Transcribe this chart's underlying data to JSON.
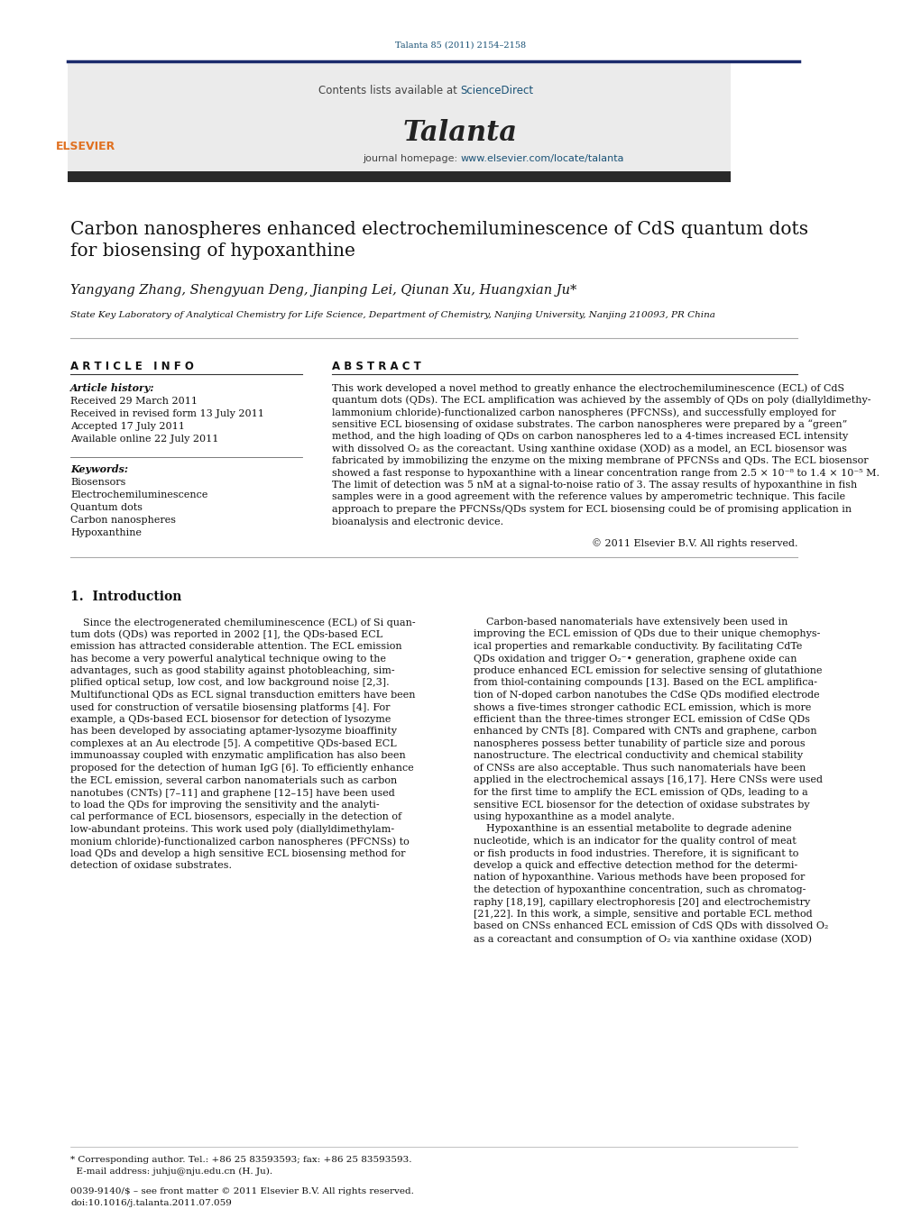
{
  "page_width": 10.21,
  "page_height": 13.51,
  "bg_color": "#ffffff",
  "journal_ref": "Talanta 85 (2011) 2154–2158",
  "journal_ref_color": "#1a5276",
  "header_bg": "#ebebeb",
  "sciencedirect_color": "#1a5276",
  "journal_name": "Talanta",
  "journal_url_color": "#1a5276",
  "dark_bar_color": "#2a2a2a",
  "article_title": "Carbon nanospheres enhanced electrochemiluminescence of CdS quantum dots\nfor biosensing of hypoxanthine",
  "authors": "Yangyang Zhang, Shengyuan Deng, Jianping Lei, Qiunan Xu, Huangxian Ju",
  "affiliation": "State Key Laboratory of Analytical Chemistry for Life Science, Department of Chemistry, Nanjing University, Nanjing 210093, PR China",
  "article_info_header": "A R T I C L E   I N F O",
  "abstract_header": "A B S T R A C T",
  "article_history_label": "Article history:",
  "received": "Received 29 March 2011",
  "revised": "Received in revised form 13 July 2011",
  "accepted": "Accepted 17 July 2011",
  "available": "Available online 22 July 2011",
  "keywords_label": "Keywords:",
  "keywords": [
    "Biosensors",
    "Electrochemiluminescence",
    "Quantum dots",
    "Carbon nanospheres",
    "Hypoxanthine"
  ],
  "copyright": "© 2011 Elsevier B.V. All rights reserved.",
  "intro_header": "1.  Introduction",
  "abstract_lines": [
    "This work developed a novel method to greatly enhance the electrochemiluminescence (ECL) of CdS",
    "quantum dots (QDs). The ECL amplification was achieved by the assembly of QDs on poly (diallyldimethy-",
    "lammonium chloride)-functionalized carbon nanospheres (PFCNSs), and successfully employed for",
    "sensitive ECL biosensing of oxidase substrates. The carbon nanospheres were prepared by a “green”",
    "method, and the high loading of QDs on carbon nanospheres led to a 4-times increased ECL intensity",
    "with dissolved O₂ as the coreactant. Using xanthine oxidase (XOD) as a model, an ECL biosensor was",
    "fabricated by immobilizing the enzyme on the mixing membrane of PFCNSs and QDs. The ECL biosensor",
    "showed a fast response to hypoxanthine with a linear concentration range from 2.5 × 10⁻⁸ to 1.4 × 10⁻⁵ M.",
    "The limit of detection was 5 nM at a signal-to-noise ratio of 3. The assay results of hypoxanthine in fish",
    "samples were in a good agreement with the reference values by amperometric technique. This facile",
    "approach to prepare the PFCNSs/QDs system for ECL biosensing could be of promising application in",
    "bioanalysis and electronic device."
  ],
  "intro_left_lines": [
    "    Since the electrogenerated chemiluminescence (ECL) of Si quan-",
    "tum dots (QDs) was reported in 2002 [1], the QDs-based ECL",
    "emission has attracted considerable attention. The ECL emission",
    "has become a very powerful analytical technique owing to the",
    "advantages, such as good stability against photobleaching, sim-",
    "plified optical setup, low cost, and low background noise [2,3].",
    "Multifunctional QDs as ECL signal transduction emitters have been",
    "used for construction of versatile biosensing platforms [4]. For",
    "example, a QDs-based ECL biosensor for detection of lysozyme",
    "has been developed by associating aptamer-lysozyme bioaffinity",
    "complexes at an Au electrode [5]. A competitive QDs-based ECL",
    "immunoassay coupled with enzymatic amplification has also been",
    "proposed for the detection of human IgG [6]. To efficiently enhance",
    "the ECL emission, several carbon nanomaterials such as carbon",
    "nanotubes (CNTs) [7–11] and graphene [12–15] have been used",
    "to load the QDs for improving the sensitivity and the analyti-",
    "cal performance of ECL biosensors, especially in the detection of",
    "low-abundant proteins. This work used poly (diallyldimethylam-",
    "monium chloride)-functionalized carbon nanospheres (PFCNSs) to",
    "load QDs and develop a high sensitive ECL biosensing method for",
    "detection of oxidase substrates."
  ],
  "intro_right_lines": [
    "    Carbon-based nanomaterials have extensively been used in",
    "improving the ECL emission of QDs due to their unique chemophys-",
    "ical properties and remarkable conductivity. By facilitating CdTe",
    "QDs oxidation and trigger O₂⁻• generation, graphene oxide can",
    "produce enhanced ECL emission for selective sensing of glutathione",
    "from thiol-containing compounds [13]. Based on the ECL amplifica-",
    "tion of N-doped carbon nanotubes the CdSe QDs modified electrode",
    "shows a five-times stronger cathodic ECL emission, which is more",
    "efficient than the three-times stronger ECL emission of CdSe QDs",
    "enhanced by CNTs [8]. Compared with CNTs and graphene, carbon",
    "nanospheres possess better tunability of particle size and porous",
    "nanostructure. The electrical conductivity and chemical stability",
    "of CNSs are also acceptable. Thus such nanomaterials have been",
    "applied in the electrochemical assays [16,17]. Here CNSs were used",
    "for the first time to amplify the ECL emission of QDs, leading to a",
    "sensitive ECL biosensor for the detection of oxidase substrates by",
    "using hypoxanthine as a model analyte.",
    "    Hypoxanthine is an essential metabolite to degrade adenine",
    "nucleotide, which is an indicator for the quality control of meat",
    "or fish products in food industries. Therefore, it is significant to",
    "develop a quick and effective detection method for the determi-",
    "nation of hypoxanthine. Various methods have been proposed for",
    "the detection of hypoxanthine concentration, such as chromatog-",
    "raphy [18,19], capillary electrophoresis [20] and electrochemistry",
    "[21,22]. In this work, a simple, sensitive and portable ECL method",
    "based on CNSs enhanced ECL emission of CdS QDs with dissolved O₂",
    "as a coreactant and consumption of O₂ via xanthine oxidase (XOD)"
  ],
  "footnote1": "* Corresponding author. Tel.: +86 25 83593593; fax: +86 25 83593593.",
  "footnote2": "  E-mail address: juhju@nju.edu.cn (H. Ju).",
  "issn1": "0039-9140/$ – see front matter © 2011 Elsevier B.V. All rights reserved.",
  "issn2": "doi:10.1016/j.talanta.2011.07.059"
}
